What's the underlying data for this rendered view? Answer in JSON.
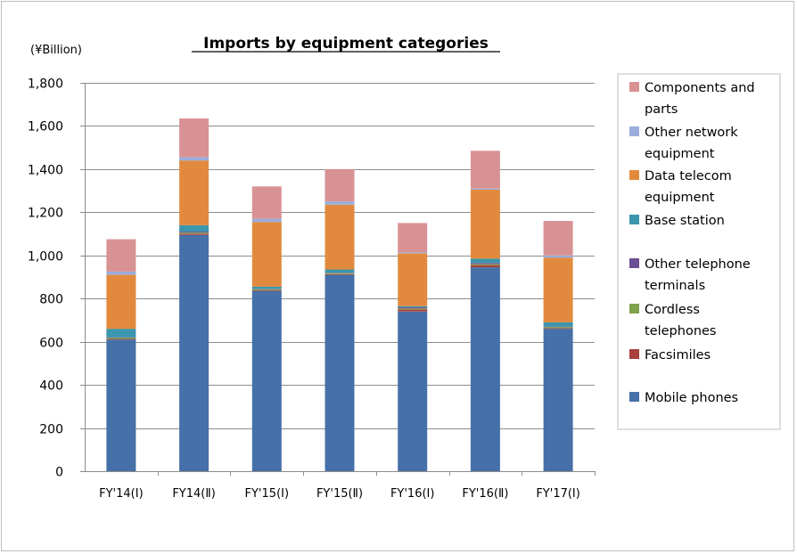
{
  "chart_data": {
    "type": "bar",
    "stacked": true,
    "title": "Imports by equipment categories",
    "unit_label": "(¥Billion)",
    "ylim": [
      0,
      1800
    ],
    "y_ticks": [
      "0",
      "200",
      "400",
      "600",
      "800",
      "1,000",
      "1,200",
      "1,400",
      "1,600",
      "1,800"
    ],
    "grid": true,
    "legend_position": "right",
    "categories": [
      "FY'14(Ⅰ)",
      "FY14(Ⅱ)",
      "FY'15(Ⅰ)",
      "FY'15(Ⅱ)",
      "FY'16(Ⅰ)",
      "FY'16(Ⅱ)",
      "FY'17(Ⅰ)"
    ],
    "series": [
      {
        "name": "Mobile phones",
        "color": "#4670A8",
        "values": [
          610,
          1095,
          835,
          910,
          740,
          945,
          660
        ]
      },
      {
        "name": "Facsimiles",
        "color": "#A8403C",
        "values": [
          3,
          5,
          3,
          3,
          10,
          10,
          3
        ]
      },
      {
        "name": "Cordless telephones",
        "color": "#7FA24A",
        "values": [
          5,
          5,
          5,
          5,
          5,
          5,
          5
        ]
      },
      {
        "name": "Other telephone terminals",
        "color": "#6B4F94",
        "values": [
          2,
          5,
          2,
          2,
          5,
          5,
          2
        ]
      },
      {
        "name": "Base station",
        "color": "#3B96AE",
        "values": [
          40,
          30,
          10,
          15,
          5,
          20,
          20
        ]
      },
      {
        "name": "Data telecom equipment",
        "color": "#E18A3E",
        "values": [
          250,
          300,
          300,
          300,
          245,
          320,
          300
        ]
      },
      {
        "name": "Other network equipment",
        "color": "#9AADDB",
        "values": [
          15,
          15,
          15,
          15,
          5,
          5,
          10
        ]
      },
      {
        "name": "Components and parts",
        "color": "#D99294",
        "values": [
          150,
          180,
          150,
          150,
          135,
          175,
          160
        ]
      }
    ],
    "legend": [
      {
        "series": 7,
        "lines": [
          "Components and",
          "parts"
        ]
      },
      {
        "series": 6,
        "lines": [
          "Other network",
          "equipment"
        ]
      },
      {
        "series": 5,
        "lines": [
          "Data telecom",
          "equipment"
        ]
      },
      {
        "series": 4,
        "lines": [
          "Base station"
        ]
      },
      {
        "series": 3,
        "lines": [
          "Other telephone",
          "terminals"
        ]
      },
      {
        "series": 2,
        "lines": [
          "Cordless",
          "telephones"
        ]
      },
      {
        "series": 1,
        "lines": [
          "Facsimiles"
        ]
      },
      {
        "series": 0,
        "lines": [
          "Mobile phones"
        ]
      }
    ]
  }
}
